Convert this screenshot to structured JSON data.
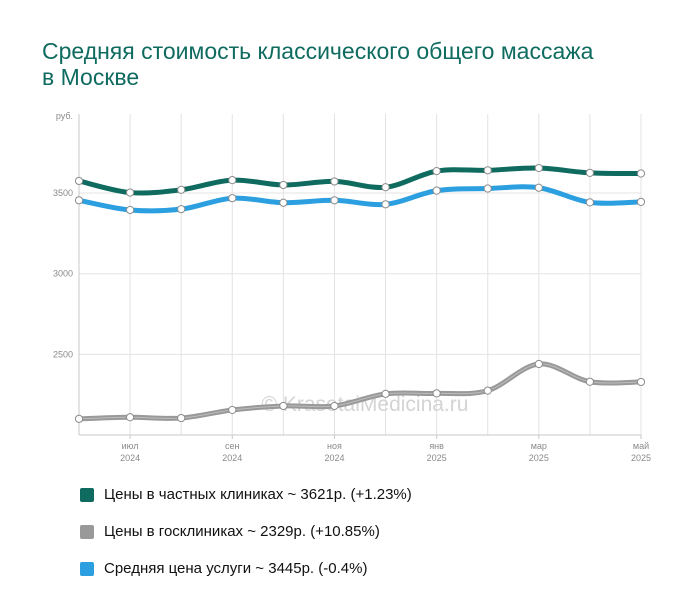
{
  "title": "Средняя стоимость классического общего массажа в Москве",
  "watermark": "© KrasotaiMedicina.ru",
  "colors": {
    "private": "#0f6b5f",
    "public": "#999999",
    "average": "#2b9fe0",
    "grid": "#e3e3e3",
    "axis": "#c8c8c8"
  },
  "legend": [
    {
      "label": "Цены в частных клиниках ~ 3621р. (+1.23%)",
      "color": "#0f6b5f"
    },
    {
      "label": "Цены в госклиниках ~ 2329р. (+10.85%)",
      "color": "#999999"
    },
    {
      "label": "Средняя цена услуги ~ 3445р. (-0.4%)",
      "color": "#2b9fe0"
    }
  ],
  "chart_data": {
    "type": "line",
    "x": [
      "2024-06",
      "2024-07",
      "2024-08",
      "2024-09",
      "2024-10",
      "2024-11",
      "2024-12",
      "2025-01",
      "2025-02",
      "2025-03",
      "2025-04",
      "2025-05"
    ],
    "ylabel": "руб.",
    "ylim": [
      2000,
      3990
    ],
    "yticks": [
      2500,
      3000,
      3500
    ],
    "xticks": [
      {
        "month": "июл",
        "year": "2024",
        "index": 1
      },
      {
        "month": "сен",
        "year": "2024",
        "index": 3
      },
      {
        "month": "ноя",
        "year": "2024",
        "index": 5
      },
      {
        "month": "янв",
        "year": "2025",
        "index": 7
      },
      {
        "month": "мар",
        "year": "2025",
        "index": 9
      },
      {
        "month": "май",
        "year": "2025",
        "index": 11
      }
    ],
    "series": [
      {
        "name": "Цены в частных клиниках",
        "color": "#0f6b5f",
        "values": [
          3575,
          3503,
          3520,
          3580,
          3550,
          3572,
          3536,
          3636,
          3641,
          3655,
          3625,
          3621
        ]
      },
      {
        "name": "Цены в госклиниках",
        "color": "#999999",
        "values": [
          2100,
          2110,
          2105,
          2155,
          2180,
          2180,
          2255,
          2258,
          2275,
          2440,
          2330,
          2329
        ]
      },
      {
        "name": "Средняя цена услуги",
        "color": "#2b9fe0",
        "values": [
          3455,
          3395,
          3400,
          3468,
          3440,
          3455,
          3430,
          3515,
          3528,
          3533,
          3442,
          3445
        ]
      }
    ],
    "grid": true
  }
}
